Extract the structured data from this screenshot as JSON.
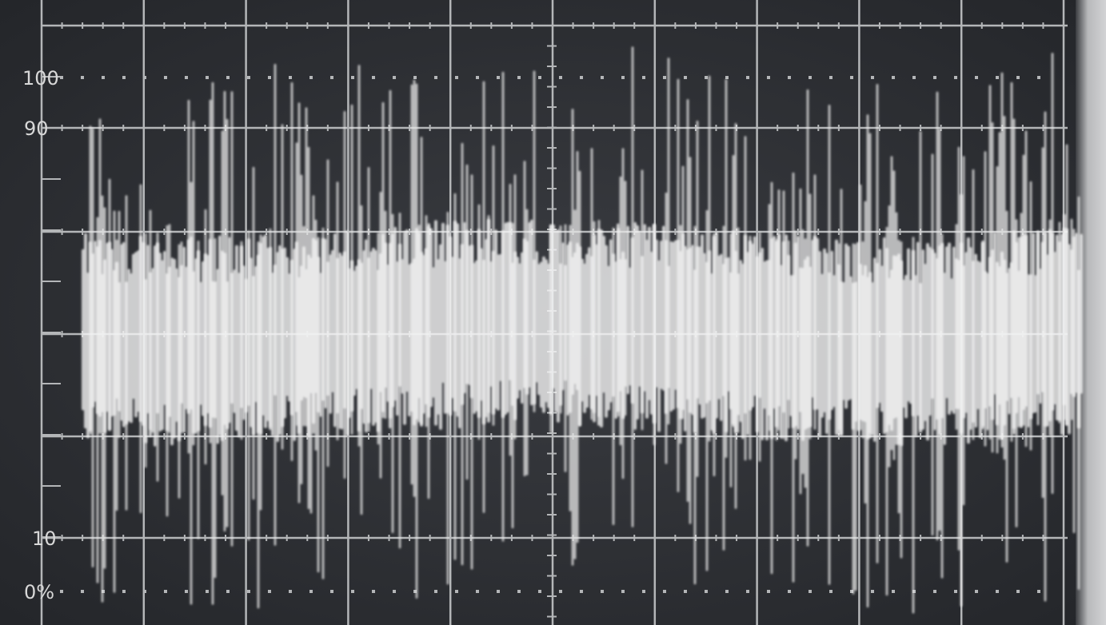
{
  "scale_labels": [
    "100",
    "90",
    "10",
    "0%"
  ]
}
